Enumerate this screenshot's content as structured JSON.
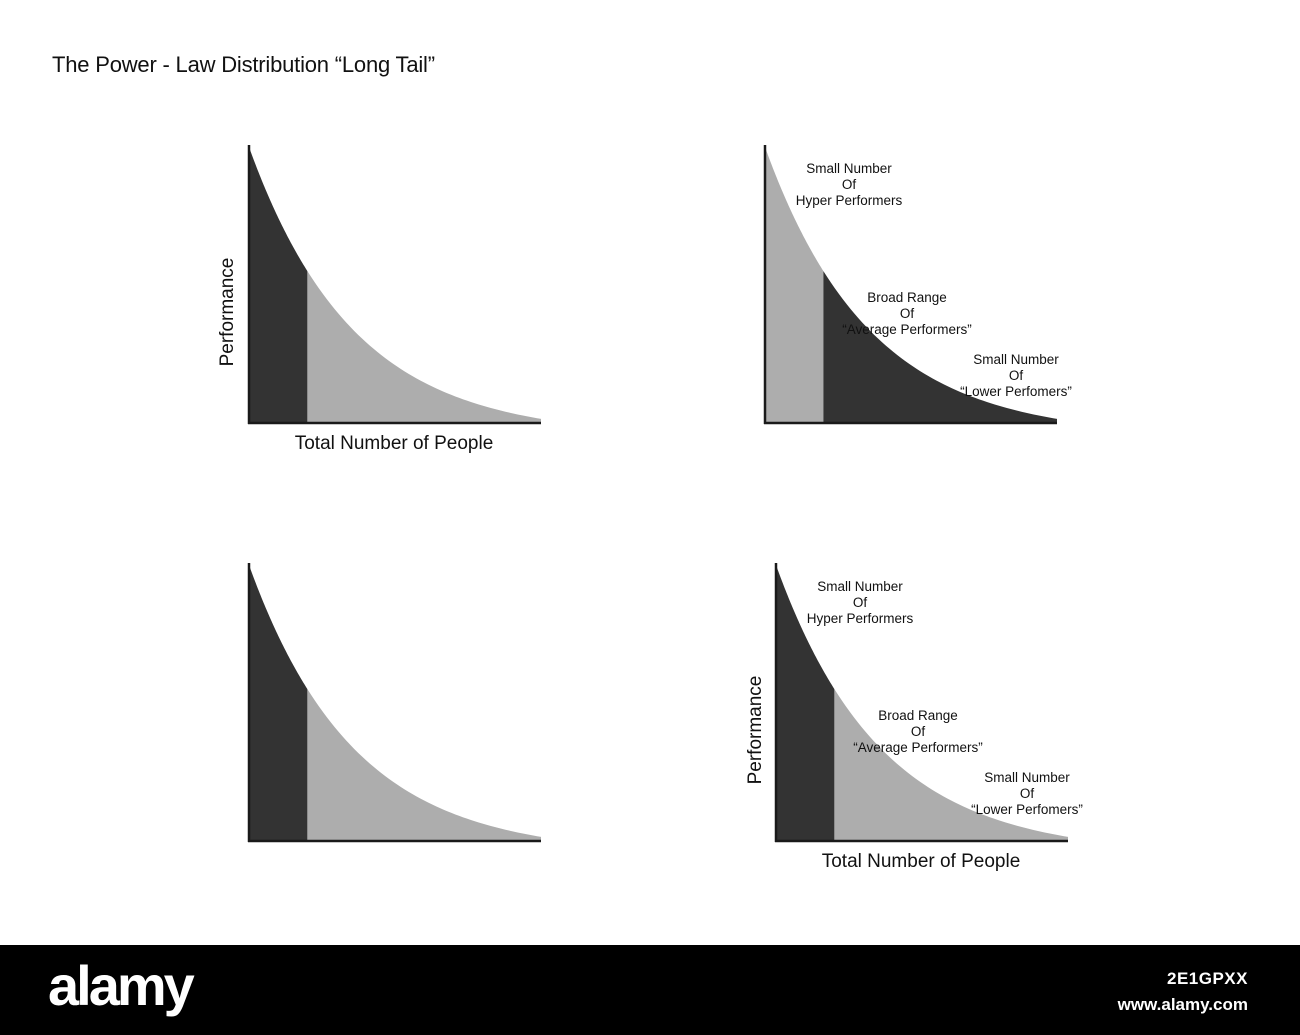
{
  "title": "The Power - Law Distribution “Long Tail”",
  "colors": {
    "dark": "#333333",
    "light": "#adadad",
    "axis": "#1a1a1a",
    "text": "#111111"
  },
  "chart_data": [
    {
      "type": "area",
      "position": "top-left",
      "xlabel": "Total Number of People",
      "ylabel": "Performance",
      "curve": "power-law",
      "segments": [
        {
          "from": 0,
          "to": 0.2,
          "color": "dark"
        },
        {
          "from": 0.2,
          "to": 1.0,
          "color": "light"
        }
      ],
      "annotations": []
    },
    {
      "type": "area",
      "position": "top-right",
      "xlabel": "",
      "ylabel": "",
      "curve": "power-law",
      "segments": [
        {
          "from": 0,
          "to": 0.2,
          "color": "light"
        },
        {
          "from": 0.2,
          "to": 1.0,
          "color": "dark"
        }
      ],
      "annotations": [
        {
          "lines": [
            "Small Number",
            "Of",
            "Hyper Performers"
          ]
        },
        {
          "lines": [
            "Broad Range",
            "Of",
            "“Average Performers”"
          ]
        },
        {
          "lines": [
            "Small Number",
            "Of",
            "“Lower Perfomers”"
          ]
        }
      ]
    },
    {
      "type": "area",
      "position": "bottom-left",
      "xlabel": "",
      "ylabel": "",
      "curve": "power-law",
      "segments": [
        {
          "from": 0,
          "to": 0.2,
          "color": "dark"
        },
        {
          "from": 0.2,
          "to": 1.0,
          "color": "light"
        }
      ],
      "annotations": []
    },
    {
      "type": "area",
      "position": "bottom-right",
      "xlabel": "Total Number of People",
      "ylabel": "Performance",
      "curve": "power-law",
      "segments": [
        {
          "from": 0,
          "to": 0.2,
          "color": "dark"
        },
        {
          "from": 0.2,
          "to": 1.0,
          "color": "light"
        }
      ],
      "annotations": [
        {
          "lines": [
            "Small Number",
            "Of",
            "Hyper Performers"
          ]
        },
        {
          "lines": [
            "Broad Range",
            "Of",
            "“Average Performers”"
          ]
        },
        {
          "lines": [
            "Small Number",
            "Of",
            "“Lower Perfomers”"
          ]
        }
      ]
    }
  ],
  "watermark": {
    "logo": "alamy",
    "image_id": "2E1GPXX",
    "site": "www.alamy.com"
  }
}
